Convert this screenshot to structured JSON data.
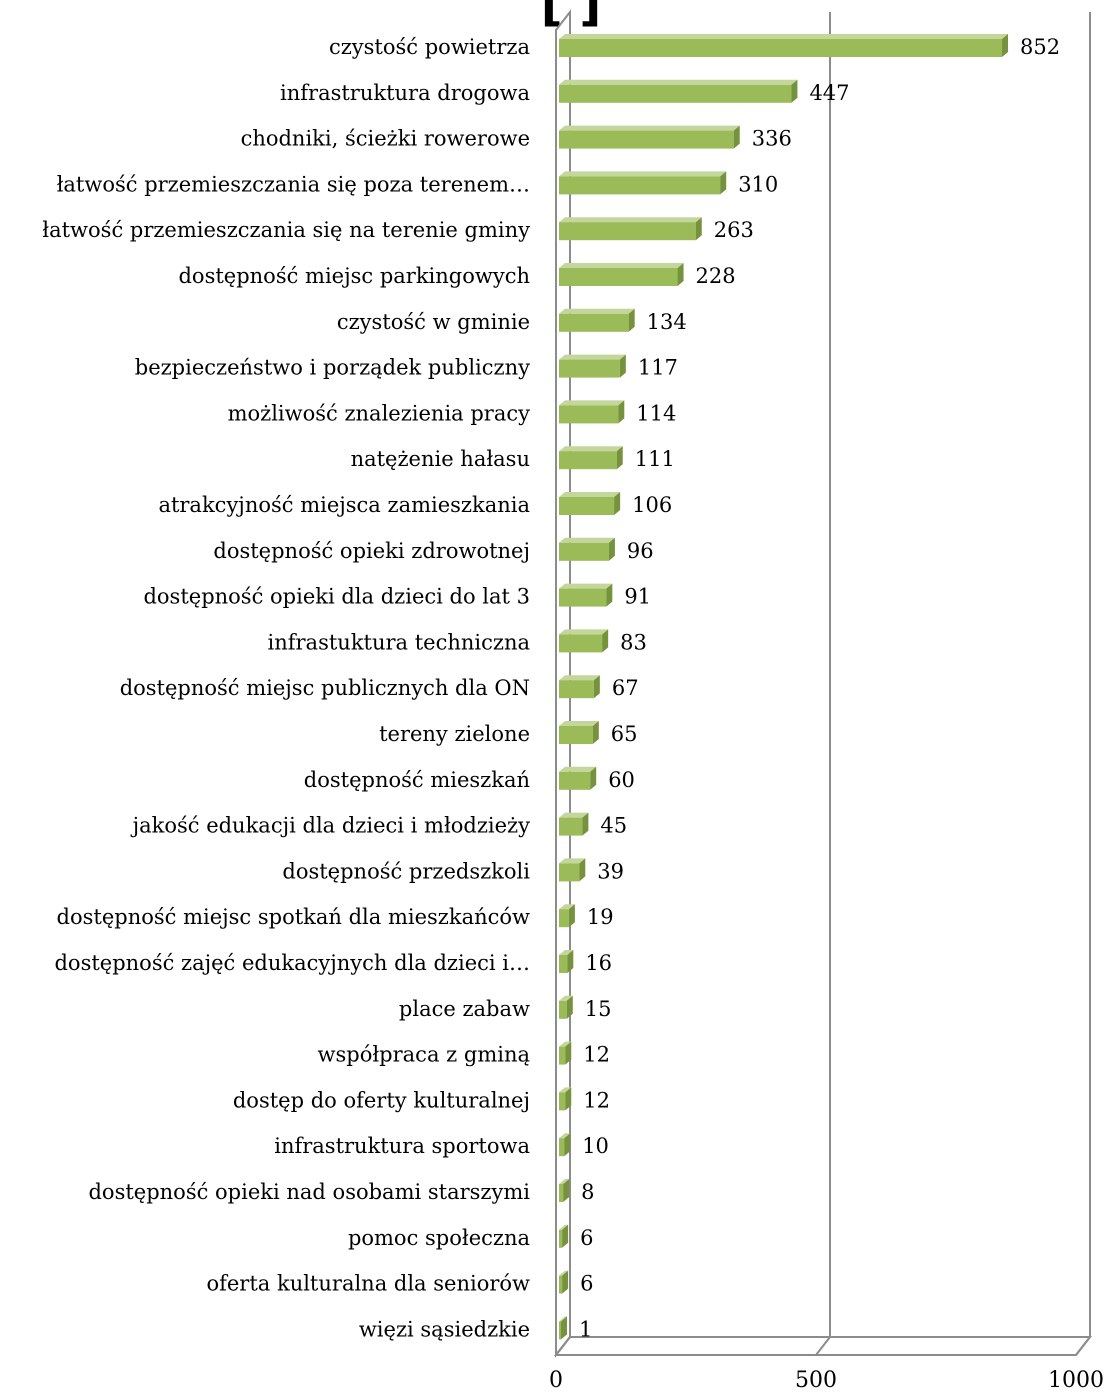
{
  "chart_data": {
    "type": "bar",
    "orientation": "horizontal",
    "title": "[          ]",
    "categories": [
      "czystość powietrza",
      "infrastruktura drogowa",
      "chodniki, ścieżki rowerowe",
      "łatwość przemieszczania się poza terenem…",
      "łatwość przemieszczania się na terenie gminy",
      "dostępność miejsc parkingowych",
      "czystość w gminie",
      "bezpieczeństwo i porządek publiczny",
      "możliwość znalezienia pracy",
      "natężenie hałasu",
      "atrakcyjność miejsca zamieszkania",
      "dostępność opieki zdrowotnej",
      "dostępność opieki dla dzieci do lat 3",
      "infrastuktura techniczna",
      "dostępność miejsc publicznych dla ON",
      "tereny zielone",
      "dostępność mieszkań",
      "jakość edukacji dla dzieci i młodzieży",
      "dostępność przedszkoli",
      "dostępność miejsc spotkań dla mieszkańców",
      "dostępność zajęć edukacyjnych dla dzieci i…",
      "place zabaw",
      "współpraca z gminą",
      "dostęp do oferty kulturalnej",
      "infrastruktura sportowa",
      "dostępność opieki nad osobami starszymi",
      "pomoc społeczna",
      "oferta kulturalna dla seniorów",
      "więzi sąsiedzkie"
    ],
    "values": [
      852,
      447,
      336,
      310,
      263,
      228,
      134,
      117,
      114,
      111,
      106,
      96,
      91,
      83,
      67,
      65,
      60,
      45,
      39,
      19,
      16,
      15,
      12,
      12,
      10,
      8,
      6,
      6,
      1
    ],
    "xlim": [
      0,
      1000
    ],
    "ticks": [
      0,
      500,
      1000
    ],
    "tick_labels": [
      "0",
      "500",
      "1000"
    ],
    "xlabel": "",
    "ylabel": "",
    "grid": true,
    "style": "3d",
    "colors": {
      "bar_front": "#9bbb59",
      "bar_top": "#c3d69b",
      "bar_side": "#76923c",
      "axis": "#8c8c8c"
    }
  }
}
